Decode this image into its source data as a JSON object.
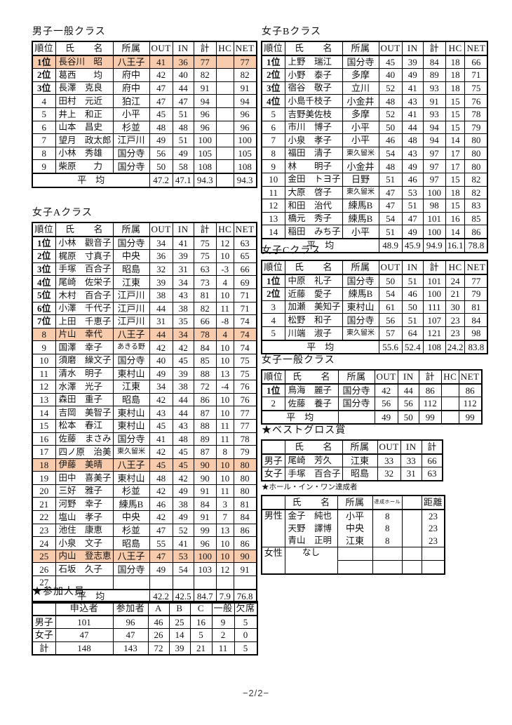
{
  "colors": {
    "highlight": "#f8cbad",
    "border": "#000000"
  },
  "footer": {
    "page_indicator": "−2/2−"
  },
  "tables": {
    "mens_general": {
      "title": "男子一般クラス",
      "header": [
        "順位",
        "氏　　名",
        "所属",
        "OUT",
        "IN",
        "計",
        "HC",
        "NET"
      ],
      "rows": [
        {
          "hl": true,
          "cells": [
            "1位",
            "長谷川　昭",
            "八王子",
            "41",
            "36",
            "77",
            "",
            "77"
          ]
        },
        {
          "cells": [
            "2位",
            "葛西　　均",
            "府中",
            "42",
            "40",
            "82",
            "",
            "82"
          ]
        },
        {
          "cells": [
            "3位",
            "長澤　克良",
            "府中",
            "47",
            "44",
            "91",
            "",
            "91"
          ]
        },
        {
          "cells": [
            "4",
            "田村　元近",
            "狛江",
            "47",
            "47",
            "94",
            "",
            "94"
          ]
        },
        {
          "cells": [
            "5",
            "井上　和正",
            "小平",
            "45",
            "51",
            "96",
            "",
            "96"
          ]
        },
        {
          "cells": [
            "6",
            "山本　昌史",
            "杉並",
            "48",
            "48",
            "96",
            "",
            "96"
          ]
        },
        {
          "cells": [
            "7",
            "望月　政太郎",
            "江戸川",
            "49",
            "51",
            "100",
            "",
            "100"
          ]
        },
        {
          "cells": [
            "8",
            "小林　秀雄",
            "国分寺",
            "56",
            "49",
            "105",
            "",
            "105"
          ]
        },
        {
          "cells": [
            "9",
            "柴原　　力",
            "国分寺",
            "50",
            "58",
            "108",
            "",
            "108"
          ]
        },
        {
          "cls": "avg",
          "cells": [
            {
              "t": "平　均",
              "cs": 3
            },
            "47.2",
            "47.1",
            "94.3",
            "",
            "94.3"
          ]
        }
      ]
    },
    "womens_b": {
      "title": "女子Bクラス",
      "header": [
        "順位",
        "氏　　名",
        "所属",
        "OUT",
        "IN",
        "計",
        "HC",
        "NET"
      ],
      "rows": [
        {
          "cells": [
            "1位",
            "上野　瑞江",
            "国分寺",
            "45",
            "39",
            "84",
            "18",
            "66"
          ]
        },
        {
          "cells": [
            "2位",
            "小野　泰子",
            "多摩",
            "40",
            "49",
            "89",
            "18",
            "71"
          ]
        },
        {
          "cells": [
            "3位",
            "宿谷　敬子",
            "立川",
            "52",
            "41",
            "93",
            "18",
            "75"
          ]
        },
        {
          "cells": [
            "4位",
            "小島千枝子",
            "小金井",
            "48",
            "43",
            "91",
            "15",
            "76"
          ]
        },
        {
          "cells": [
            "5",
            "吉野美佐枝",
            "多摩",
            "52",
            "41",
            "93",
            "15",
            "78"
          ]
        },
        {
          "cells": [
            "6",
            "市川　博子",
            "小平",
            "50",
            "44",
            "94",
            "15",
            "79"
          ]
        },
        {
          "cells": [
            "7",
            "小泉　孝子",
            "小平",
            "46",
            "48",
            "94",
            "14",
            "80"
          ]
        },
        {
          "cells": [
            "8",
            "福田　清子",
            "東久留米",
            "54",
            "43",
            "97",
            "17",
            "80"
          ]
        },
        {
          "cells": [
            "9",
            "林　　明子",
            "小金井",
            "48",
            "49",
            "97",
            "17",
            "80"
          ]
        },
        {
          "cells": [
            "10",
            "金田　トヨ子",
            "日野",
            "51",
            "46",
            "97",
            "15",
            "82"
          ]
        },
        {
          "cells": [
            "11",
            "大原　啓子",
            "東久留米",
            "47",
            "53",
            "100",
            "18",
            "82"
          ]
        },
        {
          "cells": [
            "12",
            "和田　治代",
            "練馬B",
            "47",
            "51",
            "98",
            "15",
            "83"
          ]
        },
        {
          "cells": [
            "13",
            "橋元　秀子",
            "練馬B",
            "54",
            "47",
            "101",
            "16",
            "85"
          ]
        },
        {
          "cells": [
            "14",
            "稲田　みち子",
            "小平",
            "51",
            "49",
            "100",
            "14",
            "86"
          ]
        },
        {
          "cls": "avg",
          "cells": [
            {
              "t": "平　均",
              "cs": 3
            },
            "48.9",
            "45.9",
            "94.9",
            "16.1",
            "78.8"
          ]
        }
      ]
    },
    "womens_a": {
      "title": "女子Aクラス",
      "header": [
        "順位",
        "氏　　名",
        "所属",
        "OUT",
        "IN",
        "計",
        "HC",
        "NET"
      ],
      "rows": [
        {
          "cells": [
            "1位",
            "小林　觀音子",
            "国分寺",
            "34",
            "41",
            "75",
            "12",
            "63"
          ]
        },
        {
          "cells": [
            "2位",
            "梶原　寸真子",
            "中央",
            "36",
            "39",
            "75",
            "10",
            "65"
          ]
        },
        {
          "cells": [
            "3位",
            "手塚　百合子",
            "昭島",
            "32",
            "31",
            "63",
            "-3",
            "66"
          ]
        },
        {
          "cells": [
            "4位",
            "尾崎　佐栄子",
            "江東",
            "39",
            "34",
            "73",
            "4",
            "69"
          ]
        },
        {
          "cells": [
            "5位",
            "木村　百合子",
            "江戸川",
            "38",
            "43",
            "81",
            "10",
            "71"
          ]
        },
        {
          "cells": [
            "6位",
            "小澤　千代子",
            "江戸川",
            "44",
            "38",
            "82",
            "11",
            "71"
          ]
        },
        {
          "cells": [
            "7位",
            "上田　千恵子",
            "江戸川",
            "31",
            "35",
            "66",
            "-8",
            "74"
          ]
        },
        {
          "hl": true,
          "cells": [
            "8",
            "片山　幸代",
            "八王子",
            "44",
            "34",
            "78",
            "4",
            "74"
          ]
        },
        {
          "cells": [
            "9",
            "国澤　幸子",
            "あきる野",
            "42",
            "42",
            "84",
            "10",
            "74"
          ]
        },
        {
          "cells": [
            "10",
            "須磨　繰文子",
            "国分寺",
            "40",
            "45",
            "85",
            "10",
            "75"
          ]
        },
        {
          "cells": [
            "11",
            "清水　明子",
            "東村山",
            "49",
            "39",
            "88",
            "13",
            "75"
          ]
        },
        {
          "cells": [
            "12",
            "水澤　光子",
            "江東",
            "34",
            "38",
            "72",
            "-4",
            "76"
          ]
        },
        {
          "cells": [
            "13",
            "森田　重子",
            "昭島",
            "42",
            "44",
            "86",
            "10",
            "76"
          ]
        },
        {
          "cells": [
            "14",
            "吉岡　美智子",
            "東村山",
            "43",
            "44",
            "87",
            "10",
            "77"
          ]
        },
        {
          "cells": [
            "15",
            "松本　春江",
            "東村山",
            "45",
            "43",
            "88",
            "11",
            "77"
          ]
        },
        {
          "cells": [
            "16",
            "佐藤　まさみ",
            "国分寺",
            "41",
            "48",
            "89",
            "11",
            "78"
          ]
        },
        {
          "cells": [
            "17",
            "四ノ原　治美",
            "東久留米",
            "42",
            "45",
            "87",
            "8",
            "79"
          ]
        },
        {
          "hl": true,
          "cells": [
            "18",
            "伊藤　美晴",
            "八王子",
            "45",
            "45",
            "90",
            "10",
            "80"
          ]
        },
        {
          "cells": [
            "19",
            "田中　喜美子",
            "東村山",
            "48",
            "42",
            "90",
            "10",
            "80"
          ]
        },
        {
          "cells": [
            "20",
            "三好　雅子",
            "杉並",
            "42",
            "49",
            "91",
            "11",
            "80"
          ]
        },
        {
          "cells": [
            "21",
            "河野　幸子",
            "練馬B",
            "46",
            "38",
            "84",
            "3",
            "81"
          ]
        },
        {
          "cells": [
            "22",
            "塩山　孝子",
            "中央",
            "42",
            "49",
            "91",
            "7",
            "84"
          ]
        },
        {
          "cells": [
            "23",
            "池住　康恵",
            "杉並",
            "47",
            "52",
            "99",
            "13",
            "86"
          ]
        },
        {
          "cells": [
            "24",
            "小泉　文子",
            "昭島",
            "55",
            "41",
            "96",
            "10",
            "86"
          ]
        },
        {
          "hl": true,
          "cells": [
            "25",
            "内山　登志恵",
            "八王子",
            "47",
            "53",
            "100",
            "10",
            "90"
          ]
        },
        {
          "cells": [
            "26",
            "石坂　久子",
            "国分寺",
            "49",
            "54",
            "103",
            "12",
            "91"
          ]
        },
        {
          "cells": [
            "27",
            "",
            "",
            "",
            "",
            "",
            "",
            ""
          ]
        },
        {
          "cls": "avg",
          "cells": [
            {
              "t": "平　均",
              "cs": 3
            },
            "42.2",
            "42.5",
            "84.7",
            "7.9",
            "76.8"
          ]
        }
      ]
    },
    "womens_c": {
      "title": "女子Cクラス",
      "header": [
        "順位",
        "氏　　名",
        "所属",
        "OUT",
        "IN",
        "計",
        "HC",
        "NET"
      ],
      "rows": [
        {
          "cells": [
            "1位",
            "中原　礼子",
            "国分寺",
            "50",
            "51",
            "101",
            "24",
            "77"
          ]
        },
        {
          "cells": [
            "2位",
            "近藤　愛子",
            "練馬B",
            "54",
            "46",
            "100",
            "21",
            "79"
          ]
        },
        {
          "cells": [
            "3",
            "加瀬　美知子",
            "東村山",
            "61",
            "50",
            "111",
            "30",
            "81"
          ]
        },
        {
          "cells": [
            "4",
            "松野　和子",
            "国分寺",
            "56",
            "51",
            "107",
            "23",
            "84"
          ]
        },
        {
          "cells": [
            "5",
            "川端　淑子",
            "東久留米",
            "57",
            "64",
            "121",
            "23",
            "98"
          ]
        },
        {
          "cls": "avg",
          "cells": [
            {
              "t": "平　均",
              "cs": 3
            },
            "55.6",
            "52.4",
            "108",
            "24.2",
            "83.8"
          ]
        }
      ]
    },
    "womens_open": {
      "title": "女子一般クラス",
      "header": [
        "順位",
        "氏　　名",
        "所属",
        "OUT",
        "IN",
        "計",
        "HC",
        "NET"
      ],
      "rows": [
        {
          "cells": [
            "1位",
            "鳥海　麗子",
            "国分寺",
            "42",
            "44",
            "86",
            "",
            "86"
          ]
        },
        {
          "cells": [
            "2",
            "佐藤　養子",
            "国分寺",
            "56",
            "56",
            "112",
            "",
            "112"
          ]
        },
        {
          "cls": "avg",
          "cells": [
            {
              "t": "平　均",
              "cs": 2
            },
            "",
            "49",
            "50",
            "99",
            "",
            "99"
          ]
        }
      ]
    },
    "best_gross": {
      "title": "★ベストグロス賞",
      "header": [
        "",
        "氏　　名",
        "所属",
        "OUT",
        "IN",
        "計"
      ],
      "rows": [
        {
          "cells": [
            "男子",
            "尾崎　芳久",
            "江東",
            "33",
            "33",
            "66"
          ]
        },
        {
          "cells": [
            "女子",
            "手塚　百合子",
            "昭島",
            "32",
            "31",
            "63"
          ]
        }
      ]
    },
    "hole_in_one": {
      "title": "★ホール・イン・ワン達成者",
      "header": [
        "",
        "氏　　名",
        "所属",
        "達成ホール",
        "",
        "距離"
      ],
      "rows": [
        {
          "cls": "nobot",
          "cells": [
            {
              "t": "男性",
              "rs": 3
            },
            "金子　純也",
            "小平",
            "8",
            "",
            "23"
          ]
        },
        {
          "cls": "nobot notop",
          "cells": [
            "天野　譯博",
            "中央",
            "8",
            "",
            "23"
          ]
        },
        {
          "cls": "notop",
          "cells": [
            "青山　正明",
            "江東",
            "8",
            "",
            "23"
          ]
        },
        {
          "cells": [
            {
              "t": "女性",
              "rs": 2
            },
            {
              "t": "なし",
              "rs": 2
            },
            "",
            "",
            "",
            ""
          ]
        },
        {
          "cells": [
            "",
            "",
            "",
            ""
          ]
        }
      ]
    },
    "participants": {
      "title": "★参加人員",
      "header": [
        "",
        "申込者",
        "参加者",
        "A",
        "B",
        "C",
        "一般",
        "欠席"
      ],
      "rows": [
        {
          "cells": [
            "男子",
            "101",
            "96",
            "46",
            "25",
            "16",
            "9",
            "5"
          ]
        },
        {
          "cells": [
            "女子",
            "47",
            "47",
            "26",
            "14",
            "5",
            "2",
            "0"
          ]
        },
        {
          "cells": [
            "計",
            "148",
            "143",
            "72",
            "39",
            "21",
            "11",
            "5"
          ]
        }
      ]
    }
  }
}
